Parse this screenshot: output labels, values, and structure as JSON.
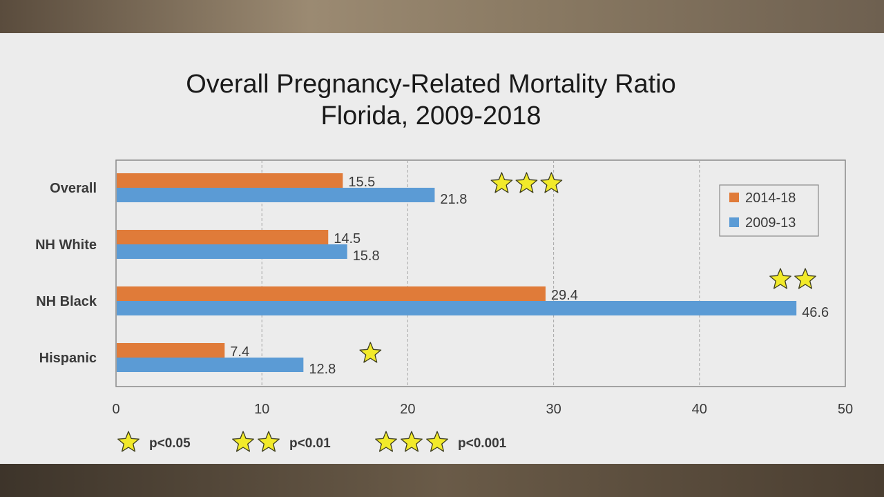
{
  "chart_data": {
    "type": "bar",
    "orientation": "horizontal",
    "title_lines": [
      "Overall Pregnancy-Related Mortality Ratio",
      "Florida, 2009-2018"
    ],
    "categories": [
      "Overall",
      "NH White",
      "NH Black",
      "Hispanic"
    ],
    "series": [
      {
        "name": "2014-18",
        "values": [
          15.5,
          14.5,
          29.4,
          7.4
        ],
        "color": "#e07b39"
      },
      {
        "name": "2009-13",
        "values": [
          21.8,
          15.8,
          46.6,
          12.8
        ],
        "color": "#5b9bd5"
      }
    ],
    "data_labels": [
      [
        "15.5",
        "14.5",
        "29.4",
        "7.4"
      ],
      [
        "21.8",
        "15.8",
        "46.6",
        "12.8"
      ]
    ],
    "xlim": [
      0,
      50
    ],
    "x_ticks": [
      0,
      10,
      20,
      30,
      40,
      50
    ],
    "tick_labels": [
      "0",
      "10",
      "20",
      "30",
      "40",
      "50"
    ],
    "gridlines": true,
    "legend_position": "top-right",
    "significance": [
      3,
      0,
      2,
      1
    ],
    "significance_legend": [
      {
        "stars": 1,
        "label": "p<0.05"
      },
      {
        "stars": 2,
        "label": "p<0.01"
      },
      {
        "stars": 3,
        "label": "p<0.001"
      }
    ],
    "star_color": "#f2ea2a"
  }
}
